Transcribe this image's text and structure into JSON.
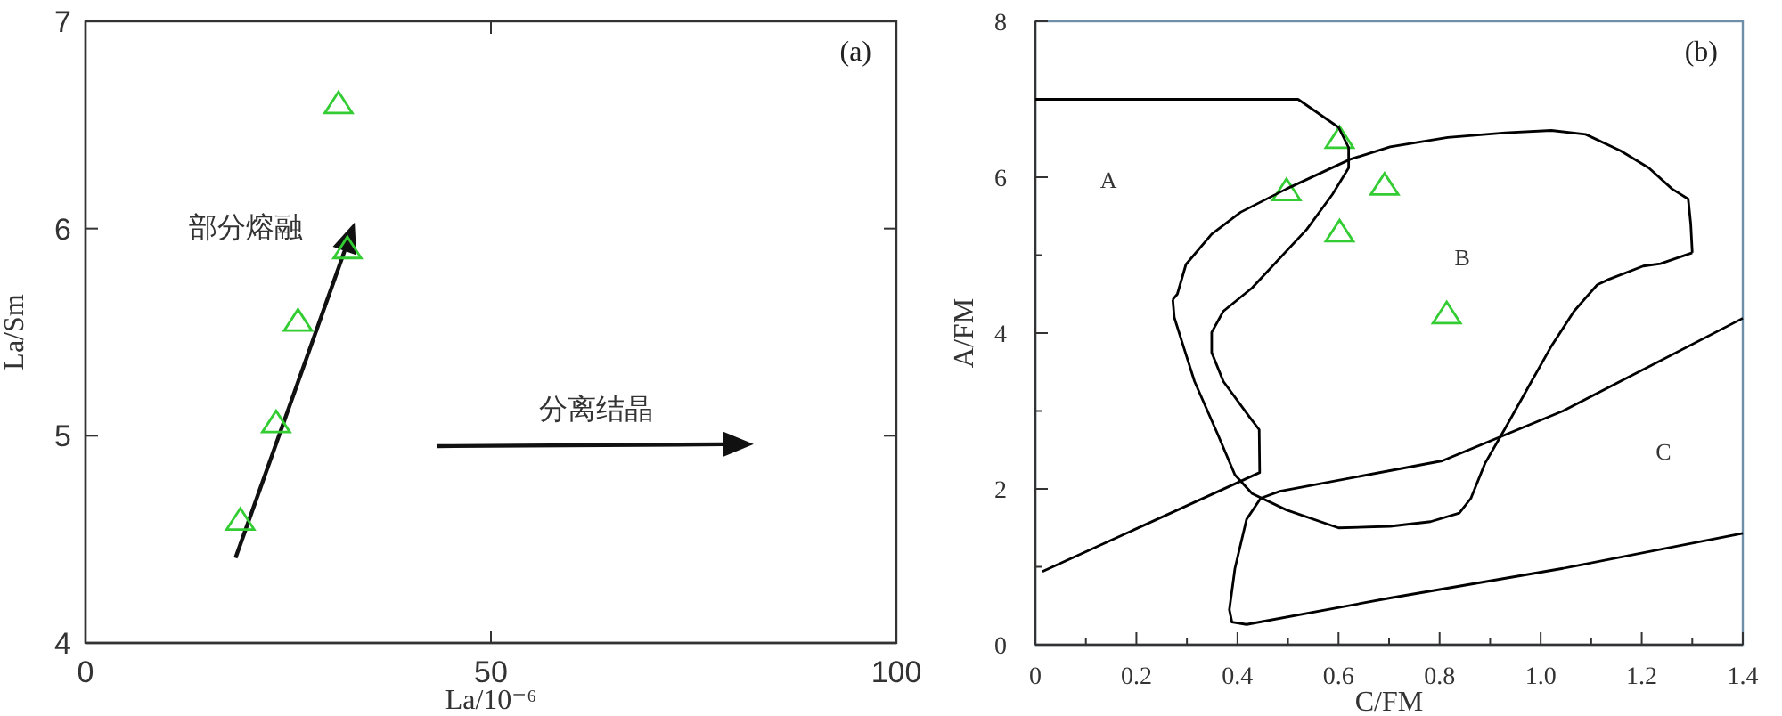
{
  "chart_data": [
    {
      "type": "scatter",
      "xlabel": "La/10⁻⁶",
      "ylabel": "La/Sm",
      "xlim": [
        0,
        100
      ],
      "ylim": [
        4,
        7
      ],
      "xticks": [
        0,
        50,
        100
      ],
      "yticks": [
        4,
        5,
        6,
        7
      ],
      "grid": false,
      "annotations": [
        "(a)",
        "部分熔融",
        "分离结晶"
      ],
      "series": [
        {
          "color": "#33cc33",
          "marker": "triangle",
          "x": [
            31.2,
            32.3,
            26.2,
            23.5,
            19.1
          ],
          "values": [
            6.6,
            5.9,
            5.55,
            5.06,
            4.59
          ]
        }
      ]
    },
    {
      "type": "scatter",
      "xlabel": "C/FM",
      "ylabel": "A/FM",
      "xlim": [
        0,
        1.4
      ],
      "ylim": [
        0,
        8
      ],
      "xticks": [
        0,
        {
          "value": 0.1,
          "label": null
        },
        0.2,
        {
          "value": 0.3,
          "label": null
        },
        0.4,
        {
          "value": 0.5,
          "label": null
        },
        0.6,
        {
          "value": 0.7,
          "label": null
        },
        0.8,
        {
          "value": 0.9,
          "label": null
        },
        {
          "value": 1.0,
          "label": "1.0"
        },
        {
          "value": 1.1,
          "label": null
        },
        1.2,
        {
          "value": 1.3,
          "label": null
        },
        1.4
      ],
      "yticks": [
        0,
        {
          "value": 1,
          "label": null
        },
        2,
        {
          "value": 3,
          "label": null
        },
        4,
        {
          "value": 5,
          "label": null
        },
        6,
        {
          "value": 7,
          "label": null
        },
        8
      ],
      "grid": false,
      "annotations": [
        "(b)",
        "A",
        "B",
        "C"
      ],
      "series": [
        {
          "color": "#33cc33",
          "marker": "triangle",
          "x": [
            0.602,
            0.497,
            0.691,
            0.602,
            0.814
          ],
          "values": [
            6.49,
            5.82,
            5.89,
            5.29,
            4.24
          ]
        },
        {
          "type": "line",
          "color": "#000000",
          "marker": "none",
          "x": [
            0,
            0.52,
            0.6,
            0.62,
            0.62,
            0.588,
            0.537,
            0.429,
            0.372,
            0.349,
            0.349,
            0.372,
            0.423,
            0.443,
            0.444,
            0.014
          ],
          "values": [
            7.0,
            7.0,
            6.64,
            6.38,
            6.12,
            5.78,
            5.33,
            4.58,
            4.28,
            4.01,
            3.75,
            3.38,
            2.93,
            2.76,
            2.21,
            0.94
          ]
        },
        {
          "type": "line",
          "color": "#000000",
          "marker": "none",
          "x": [
            0.272,
            0.281,
            0.298,
            0.349,
            0.406,
            0.497,
            0.623,
            0.702,
            0.816,
            0.93,
            1.021,
            1.089,
            1.158,
            1.214,
            1.26,
            1.292,
            1.297,
            1.3
          ],
          "values": [
            4.43,
            4.5,
            4.88,
            5.27,
            5.55,
            5.85,
            6.23,
            6.39,
            6.51,
            6.57,
            6.6,
            6.55,
            6.34,
            6.12,
            5.85,
            5.72,
            5.4,
            5.03
          ]
        },
        {
          "type": "line",
          "color": "#000000",
          "marker": "none",
          "x": [
            1.3,
            1.237,
            1.203,
            1.135,
            1.112,
            1.066,
            1.021,
            0.975,
            0.93,
            0.89,
            0.862,
            0.839,
            0.782,
            0.702,
            0.6,
            0.497,
            0.429,
            0.395,
            0.361,
            0.315,
            0.293,
            0.275,
            0.272
          ],
          "values": [
            5.03,
            4.89,
            4.86,
            4.69,
            4.62,
            4.28,
            3.83,
            3.3,
            2.78,
            2.33,
            1.88,
            1.69,
            1.58,
            1.52,
            1.5,
            1.73,
            1.94,
            2.18,
            2.7,
            3.38,
            3.83,
            4.2,
            4.43
          ]
        },
        {
          "type": "line",
          "color": "#000000",
          "marker": "none",
          "x": [
            1.4,
            1.044,
            0.805,
            0.484,
            0.446,
            0.418,
            0.395,
            0.384,
            0.389,
            0.418,
            0.702,
            1.044,
            1.4
          ],
          "values": [
            4.19,
            3.0,
            2.36,
            1.97,
            1.88,
            1.61,
            0.98,
            0.45,
            0.29,
            0.26,
            0.6,
            0.98,
            1.43
          ]
        }
      ]
    }
  ]
}
